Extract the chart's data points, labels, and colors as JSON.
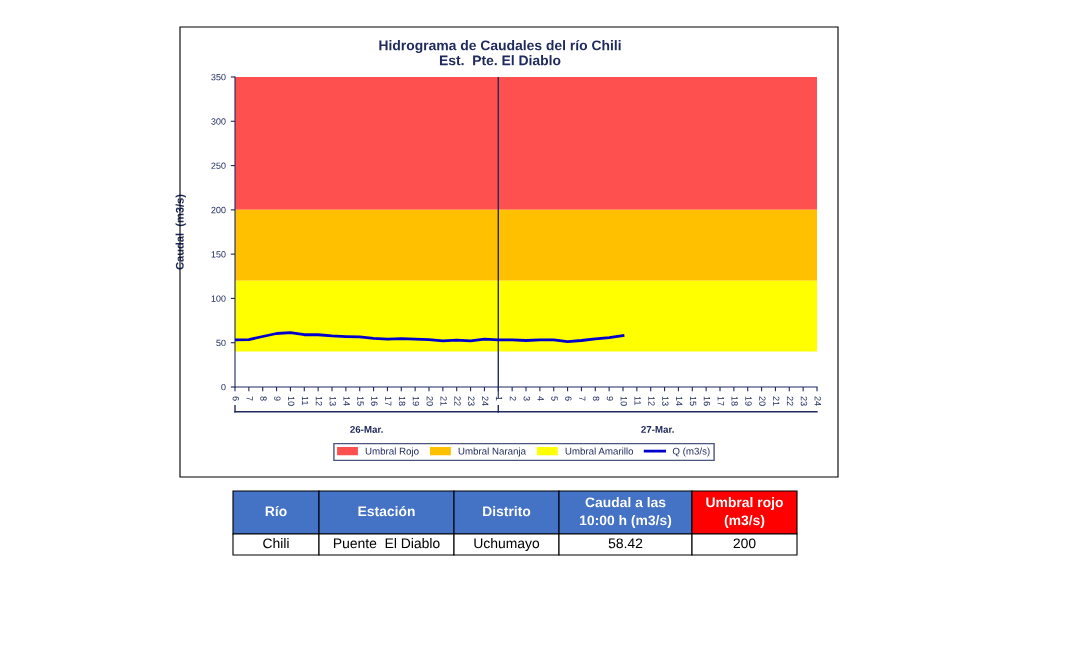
{
  "chart_data": {
    "type": "line",
    "title": "Hidrograma de Caudales del río Chili\nEst.  Pte. El Diablo",
    "ylabel": "Caudal  (m3/s)",
    "categories": [
      "6",
      "7",
      "8",
      "9",
      "10",
      "11",
      "12",
      "13",
      "14",
      "15",
      "16",
      "17",
      "18",
      "19",
      "20",
      "21",
      "22",
      "23",
      "24",
      "1",
      "2",
      "3",
      "4",
      "5",
      "6",
      "7",
      "8",
      "9",
      "10",
      "11",
      "12",
      "13",
      "14",
      "15",
      "16",
      "17",
      "18",
      "19",
      "20",
      "21",
      "22",
      "23",
      "24"
    ],
    "series": [
      {
        "name": "Q (m3/s)",
        "color": "#0000cc",
        "values": [
          53.2,
          53.6,
          57,
          60.4,
          61.5,
          59,
          59,
          57.7,
          57,
          56.6,
          55,
          54,
          54.7,
          54,
          53.6,
          52,
          52.8,
          52,
          54,
          53.2,
          53.2,
          52.5,
          53.2,
          53.2,
          51.3,
          52.5,
          54.3,
          55.8,
          58,
          null,
          null,
          null,
          null,
          null,
          null,
          null,
          null,
          null,
          null,
          null,
          null,
          null,
          null
        ]
      }
    ],
    "ylim": [
      0,
      350
    ],
    "yticks": [
      0,
      50,
      100,
      150,
      200,
      250,
      300,
      350
    ],
    "bands": [
      {
        "axis": "y",
        "from": 200,
        "to": 350,
        "label": "Umbral Rojo",
        "color": "#ff5050"
      },
      {
        "axis": "y",
        "from": 120,
        "to": 200,
        "label": "Umbral Naranja",
        "color": "#ffc000"
      },
      {
        "axis": "y",
        "from": 40,
        "to": 120,
        "label": "Umbral Amarillo",
        "color": "#ffff00"
      }
    ],
    "ref_lines": [
      {
        "axis": "x",
        "value": "1",
        "color": "#1f2a5c"
      }
    ],
    "legend": "bottom",
    "grid": false,
    "annotations": [
      "26-Mar.",
      "27-Mar.",
      "Río",
      "Estación",
      "Distrito",
      "Caudal a las\n10:00 h (m3/s)",
      "Umbral rojo\n(m3/s)",
      "Chili",
      "Puente  El Diablo",
      "Uchumayo",
      "58.42",
      "200"
    ]
  }
}
